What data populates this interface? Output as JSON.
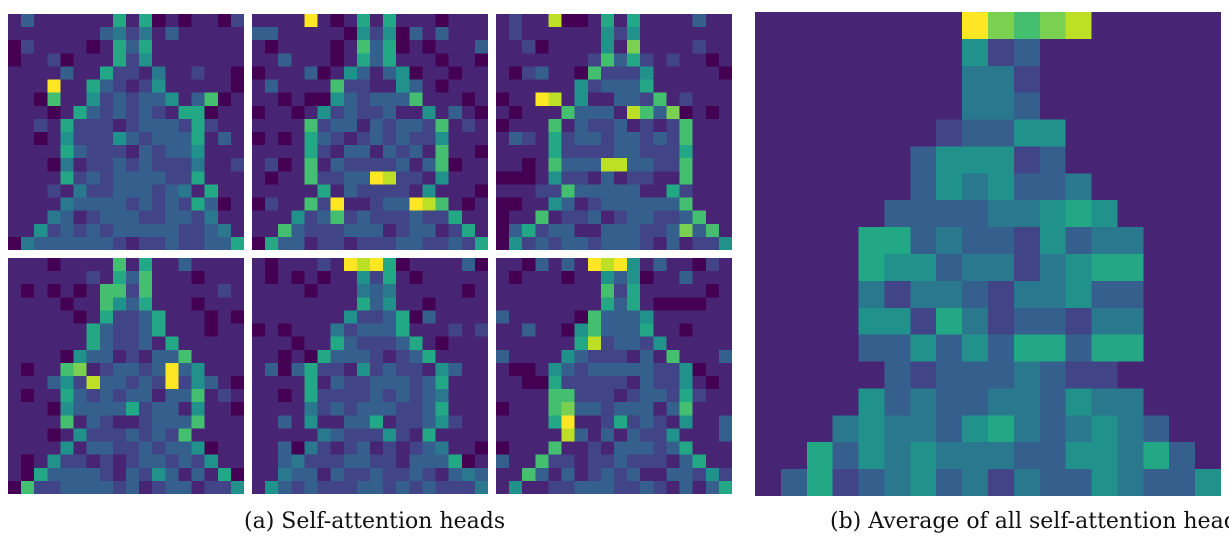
{
  "captions": {
    "a": "(a) Self-attention heads",
    "b": "(b) Average of all self-attention heads"
  },
  "colormap": [
    "#440154",
    "#482475",
    "#414487",
    "#355f8d",
    "#2a788e",
    "#21918c",
    "#22a884",
    "#44bf70",
    "#7ad151",
    "#bddf26",
    "#fde725"
  ],
  "heads": [
    {
      "name": "head-1"
    },
    {
      "name": "head-2"
    },
    {
      "name": "head-3"
    },
    {
      "name": "head-4"
    },
    {
      "name": "head-5"
    },
    {
      "name": "head-6"
    }
  ],
  "average": {
    "name": "average-head"
  }
}
